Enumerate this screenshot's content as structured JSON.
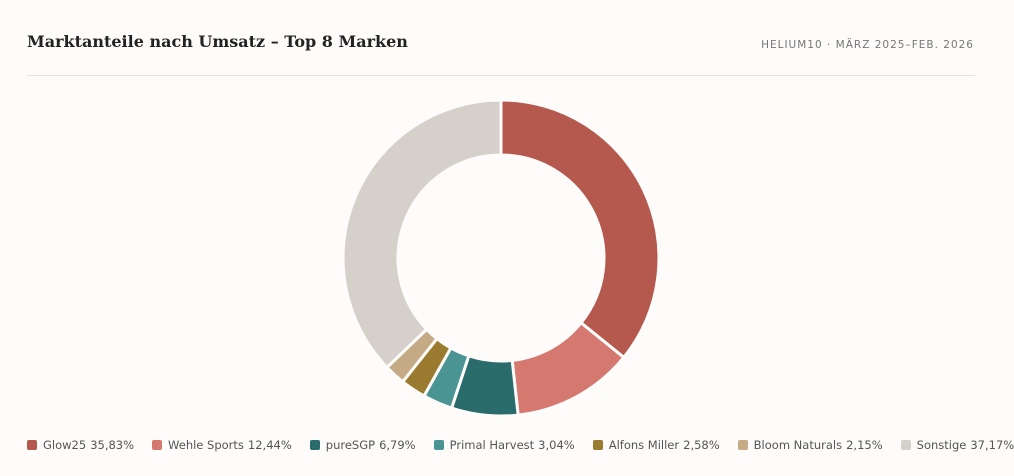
{
  "chart_data": {
    "type": "donut",
    "title": "Marktanteile nach Umsatz – Top 8 Marken",
    "subtitle": "HELIUM10 · MÄRZ 2025–FEB. 2026",
    "categories": [
      "Glow25",
      "Wehle Sports",
      "pureSGP",
      "Primal Harvest",
      "Alfons Miller",
      "Bloom Naturals",
      "Sonstige"
    ],
    "values": [
      35.83,
      12.44,
      6.79,
      3.04,
      2.58,
      2.15,
      37.17
    ],
    "value_labels": [
      "35,83%",
      "12,44%",
      "6,79%",
      "3,04%",
      "2,58%",
      "2,15%",
      "37,17%"
    ],
    "colors": [
      "#b5584d",
      "#d5786f",
      "#2a6b6b",
      "#4a9494",
      "#9a7a2e",
      "#c4aa85",
      "#d5d0ca"
    ],
    "legend": "bottom"
  }
}
